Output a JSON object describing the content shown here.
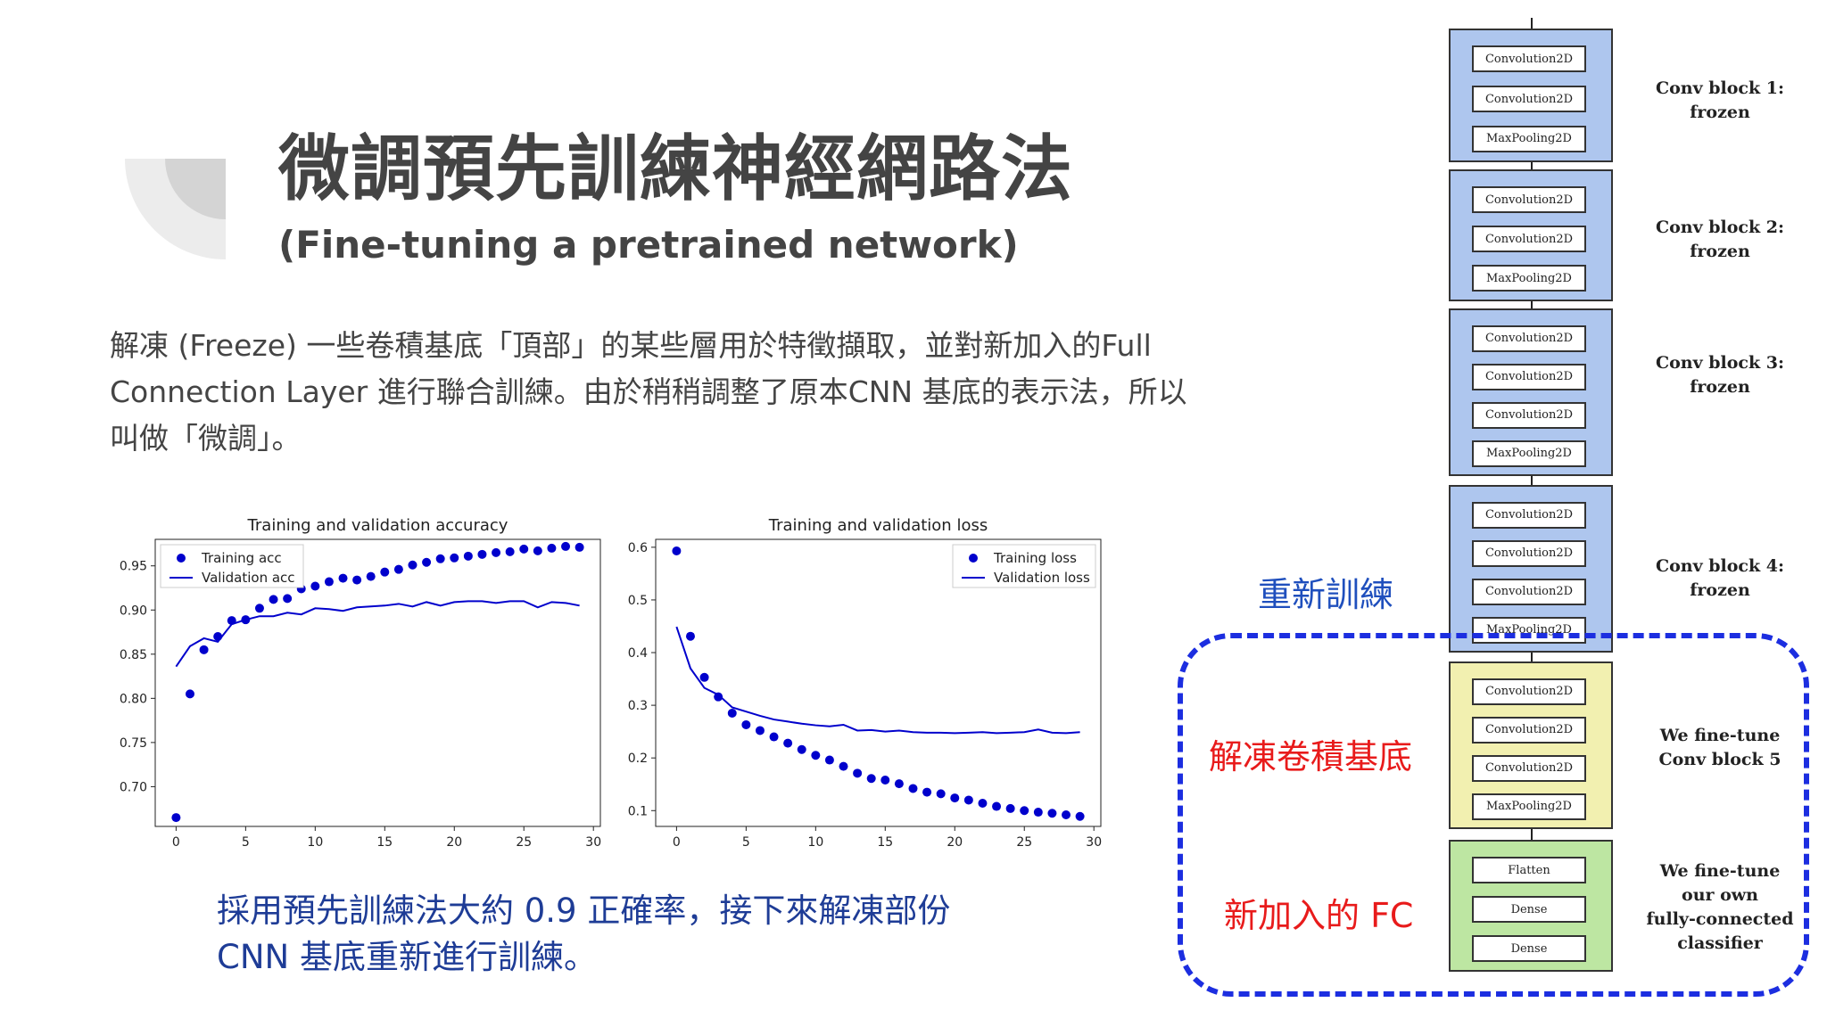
{
  "slide": {
    "title": "微調預先訓練神經網路法",
    "subtitle": "(Fine-tuning a pretrained network)",
    "body_line1": "解凍 (Freeze) 一些卷積基底「頂部」的某些層用於特徵擷取，並對新加入的Full",
    "body_line2": "Connection Layer 進行聯合訓練。由於稍稍調整了原本CNN 基底的表示法，所以",
    "body_line3": "叫做「微調」。",
    "note_line1": "採用預先訓練法大約  0.9 正確率，接下來解凍部份",
    "note_line2": "CNN 基底重新進行訓練。",
    "label_retrain": "重新訓練",
    "label_unfreeze": "解凍卷積基底",
    "label_new_fc": "新加入的 FC"
  },
  "colors": {
    "accent_blue": "#1f4fbd",
    "accent_red": "#e81b1b",
    "dash_blue": "#1c2ee0",
    "note_blue": "#1e3c96",
    "conv_block_blue": "#aec6ee",
    "conv_block_yellow": "#f2f0b0",
    "classifier_green": "#bde6a2",
    "series_blue": "#0000cc"
  },
  "architecture": {
    "blocks": [
      {
        "layers": [
          "Convolution2D",
          "Convolution2D",
          "MaxPooling2D"
        ],
        "label": "Conv block 1:\nfrozen"
      },
      {
        "layers": [
          "Convolution2D",
          "Convolution2D",
          "MaxPooling2D"
        ],
        "label": "Conv block 2:\nfrozen"
      },
      {
        "layers": [
          "Convolution2D",
          "Convolution2D",
          "Convolution2D",
          "MaxPooling2D"
        ],
        "label": "Conv block 3:\nfrozen"
      },
      {
        "layers": [
          "Convolution2D",
          "Convolution2D",
          "Convolution2D",
          "MaxPooling2D"
        ],
        "label": "Conv block 4:\nfrozen"
      },
      {
        "layers": [
          "Convolution2D",
          "Convolution2D",
          "Convolution2D",
          "MaxPooling2D"
        ],
        "label": "We fine-tune\nConv block 5"
      },
      {
        "layers": [
          "Flatten",
          "Dense",
          "Dense"
        ],
        "label": "We fine-tune\nour own\nfully-connected\nclassifier"
      }
    ]
  },
  "chart_data": [
    {
      "type": "scatter",
      "title": "Training and validation accuracy",
      "xlabel": "",
      "ylabel": "",
      "xlim": [
        -1.5,
        30.5
      ],
      "ylim": [
        0.655,
        0.98
      ],
      "xticks": [
        0,
        5,
        10,
        15,
        20,
        25,
        30
      ],
      "yticks": [
        0.7,
        0.75,
        0.8,
        0.85,
        0.9,
        0.95
      ],
      "ytick_labels": [
        "0.70",
        "0.75",
        "0.80",
        "0.85",
        "0.90",
        "0.95"
      ],
      "legend_position": "top-left",
      "series": [
        {
          "name": "Training acc",
          "style": "dots",
          "x": [
            0,
            1,
            2,
            3,
            4,
            5,
            6,
            7,
            8,
            9,
            10,
            11,
            12,
            13,
            14,
            15,
            16,
            17,
            18,
            19,
            20,
            21,
            22,
            23,
            24,
            25,
            26,
            27,
            28,
            29
          ],
          "values": [
            0.665,
            0.805,
            0.855,
            0.87,
            0.888,
            0.889,
            0.902,
            0.912,
            0.913,
            0.924,
            0.927,
            0.932,
            0.936,
            0.934,
            0.938,
            0.943,
            0.946,
            0.951,
            0.954,
            0.958,
            0.959,
            0.961,
            0.963,
            0.965,
            0.966,
            0.969,
            0.967,
            0.97,
            0.972,
            0.971
          ]
        },
        {
          "name": "Validation acc",
          "style": "line",
          "x": [
            0,
            1,
            2,
            3,
            4,
            5,
            6,
            7,
            8,
            9,
            10,
            11,
            12,
            13,
            14,
            15,
            16,
            17,
            18,
            19,
            20,
            21,
            22,
            23,
            24,
            25,
            26,
            27,
            28,
            29
          ],
          "values": [
            0.836,
            0.859,
            0.868,
            0.864,
            0.884,
            0.889,
            0.893,
            0.893,
            0.897,
            0.895,
            0.902,
            0.901,
            0.899,
            0.903,
            0.904,
            0.905,
            0.907,
            0.904,
            0.909,
            0.905,
            0.909,
            0.91,
            0.91,
            0.908,
            0.91,
            0.91,
            0.903,
            0.909,
            0.908,
            0.905
          ]
        }
      ]
    },
    {
      "type": "scatter",
      "title": "Training and validation loss",
      "xlabel": "",
      "ylabel": "",
      "xlim": [
        -1.5,
        30.5
      ],
      "ylim": [
        0.07,
        0.615
      ],
      "xticks": [
        0,
        5,
        10,
        15,
        20,
        25,
        30
      ],
      "yticks": [
        0.1,
        0.2,
        0.3,
        0.4,
        0.5,
        0.6
      ],
      "ytick_labels": [
        "0.1",
        "0.2",
        "0.3",
        "0.4",
        "0.5",
        "0.6"
      ],
      "legend_position": "top-right",
      "series": [
        {
          "name": "Training loss",
          "style": "dots",
          "x": [
            0,
            1,
            2,
            3,
            4,
            5,
            6,
            7,
            8,
            9,
            10,
            11,
            12,
            13,
            14,
            15,
            16,
            17,
            18,
            19,
            20,
            21,
            22,
            23,
            24,
            25,
            26,
            27,
            28,
            29
          ],
          "values": [
            0.593,
            0.431,
            0.353,
            0.316,
            0.285,
            0.263,
            0.252,
            0.24,
            0.228,
            0.216,
            0.205,
            0.196,
            0.184,
            0.171,
            0.161,
            0.158,
            0.151,
            0.142,
            0.135,
            0.132,
            0.124,
            0.12,
            0.114,
            0.108,
            0.104,
            0.1,
            0.097,
            0.095,
            0.092,
            0.089
          ]
        },
        {
          "name": "Validation loss",
          "style": "line",
          "x": [
            0,
            1,
            2,
            3,
            4,
            5,
            6,
            7,
            8,
            9,
            10,
            11,
            12,
            13,
            14,
            15,
            16,
            17,
            18,
            19,
            20,
            21,
            22,
            23,
            24,
            25,
            26,
            27,
            28,
            29
          ],
          "values": [
            0.449,
            0.37,
            0.333,
            0.32,
            0.296,
            0.288,
            0.28,
            0.273,
            0.269,
            0.265,
            0.262,
            0.26,
            0.263,
            0.252,
            0.253,
            0.25,
            0.252,
            0.249,
            0.248,
            0.248,
            0.247,
            0.248,
            0.249,
            0.247,
            0.248,
            0.249,
            0.254,
            0.248,
            0.247,
            0.249
          ]
        }
      ]
    }
  ]
}
